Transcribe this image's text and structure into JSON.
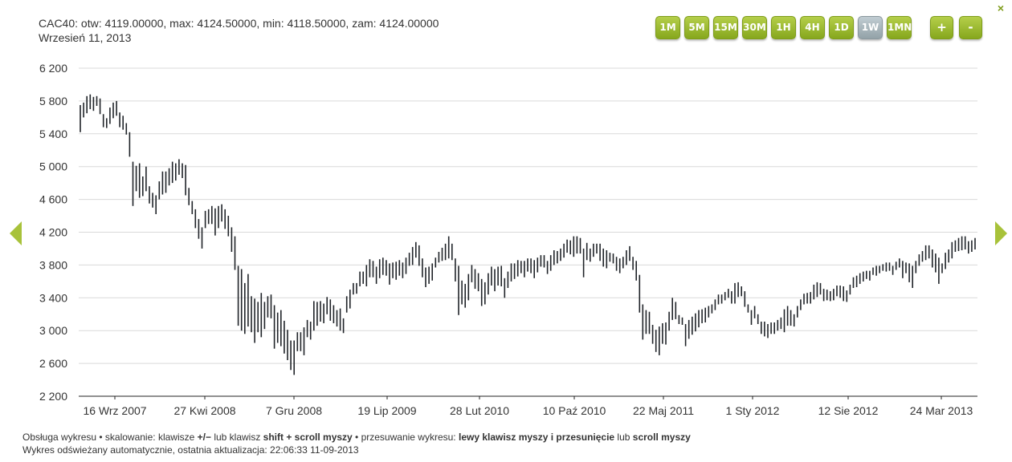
{
  "header": {
    "quote_line": "CAC40: otw: 4119.00000, max: 4124.50000, min: 4118.50000, zam: 4124.00000",
    "date_line": "Wrzesień 11, 2013"
  },
  "toolbar": {
    "timeframes": [
      {
        "label": "1M",
        "active": false
      },
      {
        "label": "5M",
        "active": false
      },
      {
        "label": "15M",
        "active": false
      },
      {
        "label": "30M",
        "active": false
      },
      {
        "label": "1H",
        "active": false
      },
      {
        "label": "4H",
        "active": false
      },
      {
        "label": "1D",
        "active": false
      },
      {
        "label": "1W",
        "active": true
      },
      {
        "label": "1MN",
        "active": false
      }
    ],
    "zoom_in_label": "+",
    "zoom_out_label": "-",
    "close_label": "×"
  },
  "footer": {
    "line1": [
      {
        "text": "Obsługa wykresu • skalowanie: klawisze ",
        "bold": false
      },
      {
        "text": "+/−",
        "bold": true
      },
      {
        "text": " lub klawisz ",
        "bold": false
      },
      {
        "text": "shift + scroll myszy",
        "bold": true
      },
      {
        "text": " • przesuwanie wykresu: ",
        "bold": false
      },
      {
        "text": "lewy klawisz myszy i przesunięcie",
        "bold": true
      },
      {
        "text": " lub ",
        "bold": false
      },
      {
        "text": "scroll myszy",
        "bold": true
      }
    ],
    "line2": "Wykres odświeżany automatycznie, ostatnia aktualizacja: 22:06:33 11-09-2013"
  },
  "colors": {
    "accent": "#9ab82c",
    "active_button": "#a9b7bd",
    "bar": "#1f2328",
    "grid": "#d9d9d9",
    "axis": "#222222"
  },
  "chart_data": {
    "type": "ohlc",
    "ylim": [
      2200,
      6200
    ],
    "yticks": [
      2200,
      2600,
      3000,
      3400,
      3800,
      4200,
      4600,
      5000,
      5400,
      5800,
      6200
    ],
    "ytick_labels": [
      "2 200",
      "2 600",
      "3 000",
      "3 400",
      "3 800",
      "4 200",
      "4 600",
      "5 000",
      "5 400",
      "5 800",
      "6 200"
    ],
    "xtick_labels": [
      "16 Wrz 2007",
      "27 Kwi 2008",
      "7 Gru 2008",
      "19 Lip 2009",
      "28 Lut 2010",
      "10 Paź 2010",
      "22 Maj 2011",
      "1 Sty 2012",
      "12 Sie 2012",
      "24 Mar 2013"
    ],
    "bars": [
      [
        5420,
        5750
      ],
      [
        5600,
        5780
      ],
      [
        5650,
        5860
      ],
      [
        5700,
        5880
      ],
      [
        5680,
        5850
      ],
      [
        5740,
        5860
      ],
      [
        5640,
        5830
      ],
      [
        5480,
        5640
      ],
      [
        5470,
        5590
      ],
      [
        5520,
        5720
      ],
      [
        5590,
        5780
      ],
      [
        5620,
        5800
      ],
      [
        5480,
        5660
      ],
      [
        5450,
        5620
      ],
      [
        5390,
        5530
      ],
      [
        5120,
        5420
      ],
      [
        4520,
        5060
      ],
      [
        4700,
        5010
      ],
      [
        4620,
        5040
      ],
      [
        4640,
        4880
      ],
      [
        4700,
        5000
      ],
      [
        4550,
        4760
      ],
      [
        4500,
        4680
      ],
      [
        4420,
        4650
      ],
      [
        4600,
        4820
      ],
      [
        4660,
        4940
      ],
      [
        4680,
        4940
      ],
      [
        4770,
        4980
      ],
      [
        4800,
        5060
      ],
      [
        4830,
        5040
      ],
      [
        4900,
        5090
      ],
      [
        4860,
        5040
      ],
      [
        4650,
        5020
      ],
      [
        4530,
        4740
      ],
      [
        4420,
        4580
      ],
      [
        4250,
        4480
      ],
      [
        4120,
        4360
      ],
      [
        4000,
        4260
      ],
      [
        4250,
        4460
      ],
      [
        4300,
        4480
      ],
      [
        4300,
        4520
      ],
      [
        4160,
        4490
      ],
      [
        4250,
        4520
      ],
      [
        4330,
        4540
      ],
      [
        4240,
        4480
      ],
      [
        4150,
        4400
      ],
      [
        3960,
        4260
      ],
      [
        3740,
        4150
      ],
      [
        3060,
        3790
      ],
      [
        3000,
        3750
      ],
      [
        2960,
        3580
      ],
      [
        3050,
        3690
      ],
      [
        2980,
        3420
      ],
      [
        2850,
        3390
      ],
      [
        2980,
        3350
      ],
      [
        2920,
        3460
      ],
      [
        3020,
        3350
      ],
      [
        3160,
        3420
      ],
      [
        3150,
        3440
      ],
      [
        2780,
        3310
      ],
      [
        2850,
        3220
      ],
      [
        2810,
        3250
      ],
      [
        2720,
        3120
      ],
      [
        2640,
        3010
      ],
      [
        2520,
        2880
      ],
      [
        2460,
        2880
      ],
      [
        2750,
        2980
      ],
      [
        2750,
        2980
      ],
      [
        2700,
        3040
      ],
      [
        2920,
        3130
      ],
      [
        2890,
        3110
      ],
      [
        3000,
        3360
      ],
      [
        3060,
        3350
      ],
      [
        3110,
        3360
      ],
      [
        3090,
        3330
      ],
      [
        3200,
        3410
      ],
      [
        3120,
        3380
      ],
      [
        3090,
        3310
      ],
      [
        3050,
        3250
      ],
      [
        3000,
        3270
      ],
      [
        2970,
        3150
      ],
      [
        3220,
        3420
      ],
      [
        3270,
        3500
      ],
      [
        3440,
        3580
      ],
      [
        3450,
        3580
      ],
      [
        3540,
        3720
      ],
      [
        3570,
        3720
      ],
      [
        3540,
        3800
      ],
      [
        3650,
        3870
      ],
      [
        3650,
        3850
      ],
      [
        3570,
        3780
      ],
      [
        3640,
        3870
      ],
      [
        3680,
        3890
      ],
      [
        3670,
        3860
      ],
      [
        3560,
        3820
      ],
      [
        3640,
        3830
      ],
      [
        3620,
        3840
      ],
      [
        3670,
        3860
      ],
      [
        3640,
        3830
      ],
      [
        3690,
        3890
      ],
      [
        3790,
        3950
      ],
      [
        3800,
        4020
      ],
      [
        3890,
        4080
      ],
      [
        3790,
        4040
      ],
      [
        3650,
        3880
      ],
      [
        3530,
        3770
      ],
      [
        3570,
        3780
      ],
      [
        3610,
        3820
      ],
      [
        3770,
        3890
      ],
      [
        3830,
        3960
      ],
      [
        3850,
        4010
      ],
      [
        3860,
        4060
      ],
      [
        3880,
        4150
      ],
      [
        3860,
        4060
      ],
      [
        3600,
        3880
      ],
      [
        3190,
        3790
      ],
      [
        3320,
        3610
      ],
      [
        3280,
        3570
      ],
      [
        3370,
        3690
      ],
      [
        3590,
        3800
      ],
      [
        3510,
        3750
      ],
      [
        3480,
        3700
      ],
      [
        3300,
        3630
      ],
      [
        3320,
        3590
      ],
      [
        3440,
        3700
      ],
      [
        3550,
        3780
      ],
      [
        3480,
        3750
      ],
      [
        3550,
        3780
      ],
      [
        3540,
        3790
      ],
      [
        3400,
        3640
      ],
      [
        3520,
        3720
      ],
      [
        3600,
        3820
      ],
      [
        3630,
        3820
      ],
      [
        3660,
        3860
      ],
      [
        3700,
        3850
      ],
      [
        3650,
        3850
      ],
      [
        3720,
        3880
      ],
      [
        3700,
        3880
      ],
      [
        3640,
        3860
      ],
      [
        3710,
        3890
      ],
      [
        3780,
        3920
      ],
      [
        3770,
        3920
      ],
      [
        3690,
        3850
      ],
      [
        3730,
        3920
      ],
      [
        3800,
        3980
      ],
      [
        3820,
        3970
      ],
      [
        3850,
        4000
      ],
      [
        3890,
        4060
      ],
      [
        3950,
        4110
      ],
      [
        3930,
        4100
      ],
      [
        3900,
        4150
      ],
      [
        3940,
        4150
      ],
      [
        3940,
        4130
      ],
      [
        3650,
        4000
      ],
      [
        3860,
        4070
      ],
      [
        3840,
        4000
      ],
      [
        3900,
        4060
      ],
      [
        3940,
        4060
      ],
      [
        3850,
        4060
      ],
      [
        3780,
        4000
      ],
      [
        3760,
        3980
      ],
      [
        3840,
        3950
      ],
      [
        3820,
        3940
      ],
      [
        3730,
        3900
      ],
      [
        3700,
        3880
      ],
      [
        3760,
        3900
      ],
      [
        3800,
        3980
      ],
      [
        3850,
        4030
      ],
      [
        3740,
        3900
      ],
      [
        3610,
        3850
      ],
      [
        3220,
        3680
      ],
      [
        2890,
        3320
      ],
      [
        2960,
        3250
      ],
      [
        2960,
        3230
      ],
      [
        2840,
        3070
      ],
      [
        2740,
        3010
      ],
      [
        2700,
        3050
      ],
      [
        2840,
        3090
      ],
      [
        2830,
        3100
      ],
      [
        3000,
        3230
      ],
      [
        3130,
        3400
      ],
      [
        3140,
        3350
      ],
      [
        3080,
        3190
      ],
      [
        3070,
        3160
      ],
      [
        2810,
        3080
      ],
      [
        2900,
        3130
      ],
      [
        2950,
        3170
      ],
      [
        2990,
        3210
      ],
      [
        3040,
        3250
      ],
      [
        3090,
        3260
      ],
      [
        3100,
        3280
      ],
      [
        3160,
        3300
      ],
      [
        3210,
        3320
      ],
      [
        3250,
        3380
      ],
      [
        3320,
        3440
      ],
      [
        3330,
        3440
      ],
      [
        3370,
        3470
      ],
      [
        3400,
        3510
      ],
      [
        3330,
        3480
      ],
      [
        3330,
        3580
      ],
      [
        3410,
        3590
      ],
      [
        3420,
        3540
      ],
      [
        3290,
        3480
      ],
      [
        3220,
        3320
      ],
      [
        3070,
        3250
      ],
      [
        3150,
        3300
      ],
      [
        3080,
        3200
      ],
      [
        2960,
        3110
      ],
      [
        2930,
        3110
      ],
      [
        2910,
        3080
      ],
      [
        2960,
        3100
      ],
      [
        2960,
        3100
      ],
      [
        3000,
        3130
      ],
      [
        3020,
        3160
      ],
      [
        2980,
        3260
      ],
      [
        3060,
        3300
      ],
      [
        3060,
        3250
      ],
      [
        3050,
        3200
      ],
      [
        3160,
        3300
      ],
      [
        3250,
        3380
      ],
      [
        3320,
        3450
      ],
      [
        3330,
        3460
      ],
      [
        3330,
        3470
      ],
      [
        3380,
        3560
      ],
      [
        3410,
        3590
      ],
      [
        3440,
        3580
      ],
      [
        3360,
        3510
      ],
      [
        3370,
        3500
      ],
      [
        3360,
        3480
      ],
      [
        3370,
        3510
      ],
      [
        3420,
        3550
      ],
      [
        3400,
        3550
      ],
      [
        3360,
        3540
      ],
      [
        3350,
        3490
      ],
      [
        3440,
        3560
      ],
      [
        3520,
        3650
      ],
      [
        3530,
        3670
      ],
      [
        3570,
        3700
      ],
      [
        3600,
        3720
      ],
      [
        3630,
        3730
      ],
      [
        3610,
        3730
      ],
      [
        3680,
        3770
      ],
      [
        3670,
        3790
      ],
      [
        3700,
        3790
      ],
      [
        3730,
        3810
      ],
      [
        3720,
        3830
      ],
      [
        3730,
        3830
      ],
      [
        3680,
        3790
      ],
      [
        3740,
        3840
      ],
      [
        3770,
        3880
      ],
      [
        3640,
        3850
      ],
      [
        3700,
        3830
      ],
      [
        3590,
        3820
      ],
      [
        3520,
        3790
      ],
      [
        3700,
        3850
      ],
      [
        3790,
        3930
      ],
      [
        3840,
        3970
      ],
      [
        3860,
        4040
      ],
      [
        3880,
        4040
      ],
      [
        3770,
        3990
      ],
      [
        3710,
        3940
      ],
      [
        3570,
        3890
      ],
      [
        3700,
        3820
      ],
      [
        3750,
        3950
      ],
      [
        3830,
        3990
      ],
      [
        3880,
        4080
      ],
      [
        3960,
        4100
      ],
      [
        3970,
        4130
      ],
      [
        3980,
        4150
      ],
      [
        3990,
        4150
      ],
      [
        3940,
        4090
      ],
      [
        3960,
        4100
      ],
      [
        3990,
        4130
      ]
    ]
  }
}
